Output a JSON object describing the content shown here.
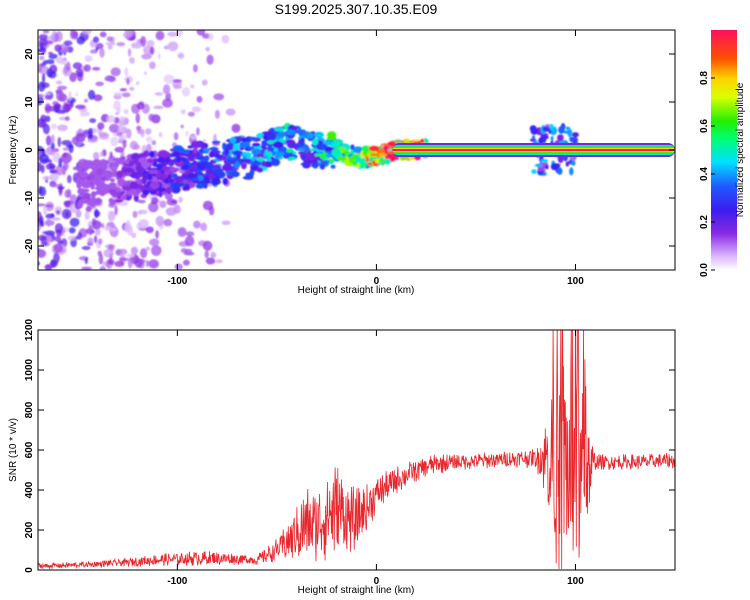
{
  "title": "S199.2025.307.10.35.E09",
  "colors": {
    "snr_line": "#e8262b",
    "axis": "#000000",
    "ridge_core": "#ff1a4a"
  },
  "chart_data": [
    {
      "type": "heatmap",
      "title": "S199.2025.307.10.35.E09",
      "xlabel": "Height of straight line (km)",
      "ylabel": "Frequency (Hz)",
      "xlim": [
        -170,
        150
      ],
      "ylim": [
        -25,
        25
      ],
      "xticks": [
        -100,
        0,
        100
      ],
      "yticks": [
        -20,
        -10,
        0,
        10,
        20
      ],
      "colorbar": {
        "label": "Normalized spectral amplitude",
        "range": [
          0.0,
          1.0
        ],
        "ticks": [
          "0.0",
          "0.2",
          "0.4",
          "0.6",
          "0.8"
        ],
        "colormap": "rainbow (white-purple-blue-cyan-green-yellow-red-pink)"
      },
      "ridge": {
        "description": "dominant frequency ridge vs height",
        "x": [
          -140,
          -120,
          -100,
          -80,
          -60,
          -45,
          -35,
          -20,
          -10,
          0,
          10,
          20,
          40,
          60,
          80,
          90,
          95,
          100,
          120,
          150
        ],
        "y": [
          -7,
          -5.5,
          -4,
          -2.5,
          -1,
          2,
          0,
          0,
          -1.5,
          -1.5,
          0,
          0,
          0,
          0,
          0,
          0,
          0.5,
          0,
          0,
          0
        ],
        "amplitude": [
          0.1,
          0.15,
          0.25,
          0.3,
          0.35,
          0.4,
          0.3,
          0.5,
          0.6,
          0.7,
          0.9,
          0.95,
          0.95,
          0.95,
          0.95,
          0.6,
          0.5,
          0.95,
          0.95,
          0.95
        ]
      }
    },
    {
      "type": "line",
      "title": "",
      "xlabel": "Height of straight line (km)",
      "ylabel": "SNR (10 * v/v)",
      "xlim": [
        -170,
        150
      ],
      "ylim": [
        0,
        1200
      ],
      "xticks": [
        -100,
        0,
        100
      ],
      "yticks": [
        0,
        200,
        400,
        600,
        800,
        1000,
        1200
      ],
      "series": [
        {
          "name": "SNR",
          "envelope_x": [
            -170,
            -150,
            -130,
            -110,
            -90,
            -70,
            -60,
            -50,
            -40,
            -35,
            -30,
            -25,
            -20,
            -15,
            -10,
            -5,
            0,
            10,
            20,
            30,
            40,
            60,
            80,
            85,
            90,
            95,
            100,
            105,
            110,
            130,
            150
          ],
          "envelope_mean": [
            20,
            25,
            35,
            50,
            60,
            55,
            50,
            100,
            180,
            230,
            220,
            280,
            300,
            260,
            250,
            300,
            380,
            450,
            500,
            530,
            540,
            550,
            560,
            560,
            520,
            500,
            480,
            450,
            540,
            540,
            545
          ],
          "envelope_noise": [
            15,
            15,
            20,
            30,
            40,
            30,
            25,
            60,
            140,
            200,
            180,
            240,
            260,
            180,
            160,
            130,
            90,
            70,
            60,
            50,
            45,
            40,
            50,
            200,
            500,
            650,
            600,
            400,
            40,
            40,
            40
          ]
        }
      ]
    }
  ]
}
